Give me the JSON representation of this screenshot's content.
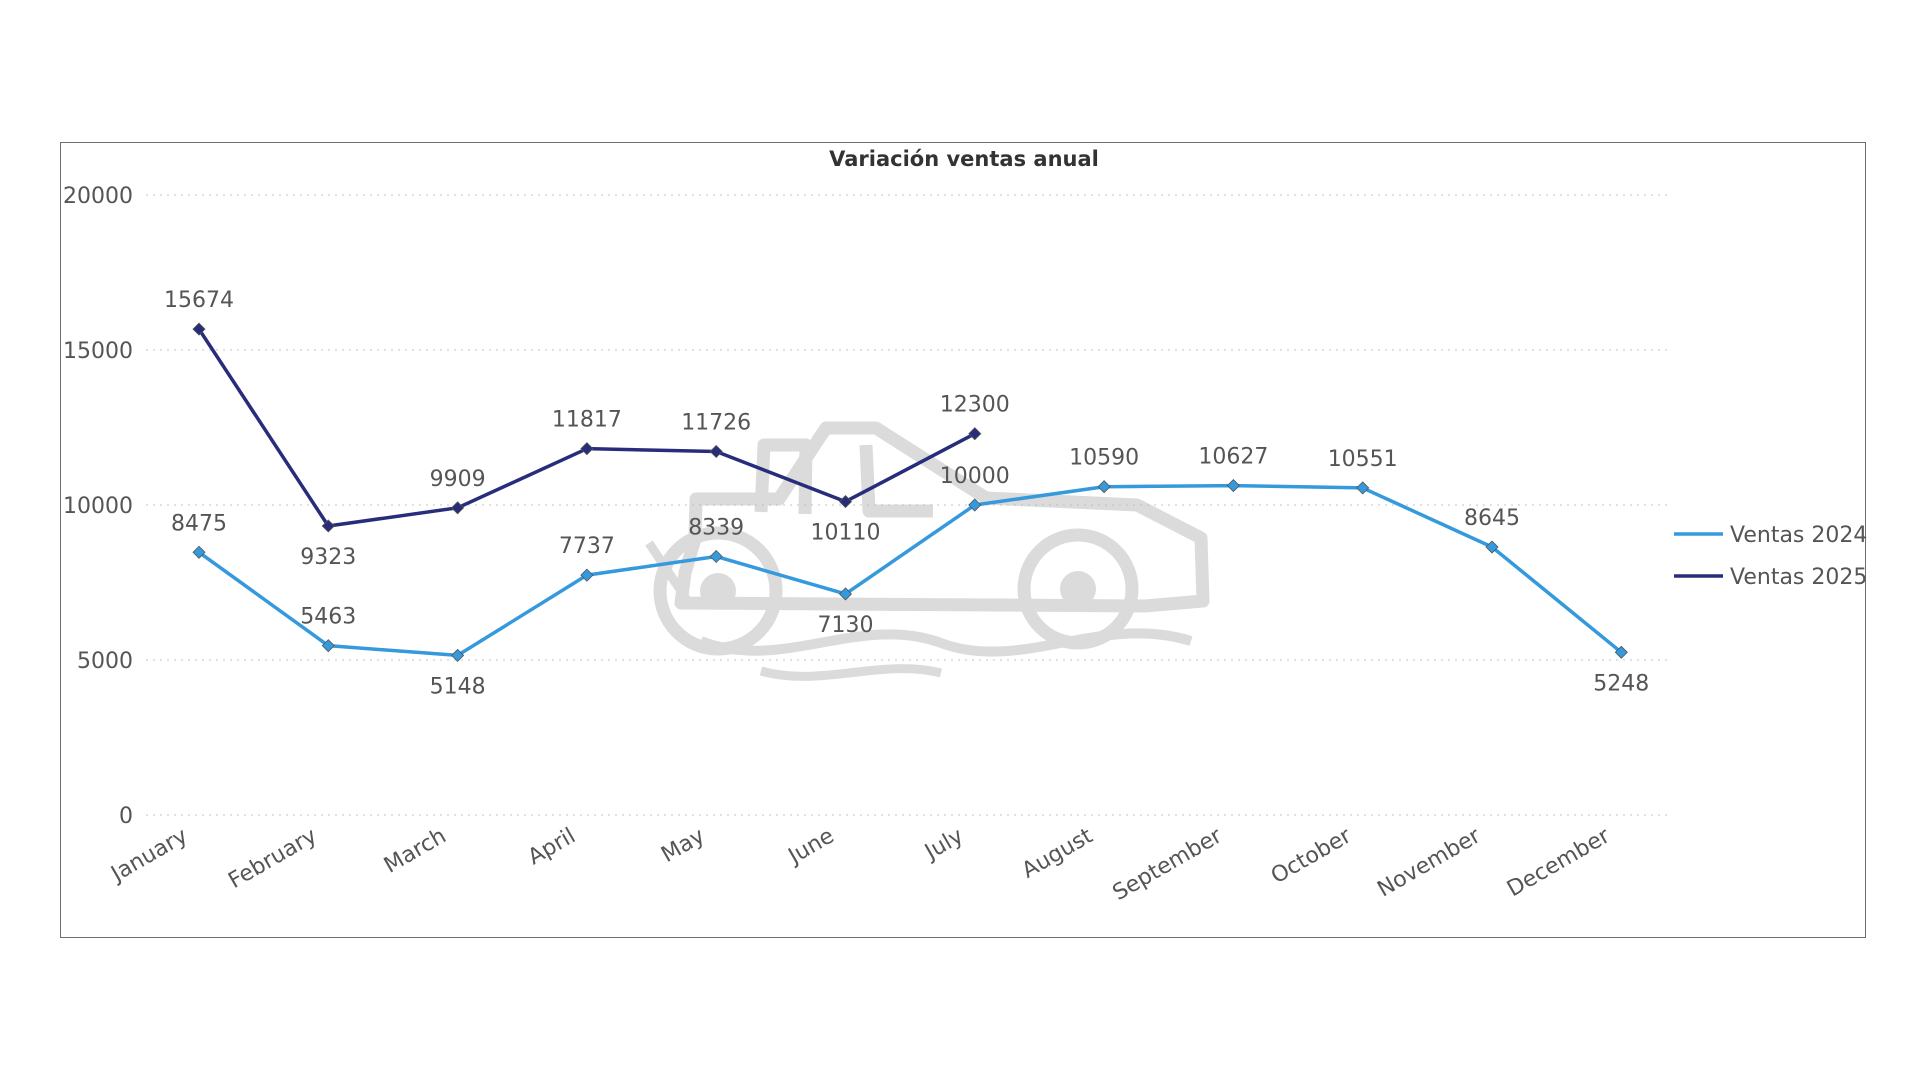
{
  "chart_data": {
    "type": "line",
    "title": "Variación ventas anual",
    "xlabel": "",
    "ylabel": "",
    "ylim": [
      0,
      20000
    ],
    "yticks": [
      "0",
      "5000",
      "10000",
      "15000",
      "20000"
    ],
    "grid": true,
    "legend_position": "right",
    "categories": [
      "January",
      "February",
      "March",
      "April",
      "May",
      "June",
      "July",
      "August",
      "September",
      "October",
      "November",
      "December"
    ],
    "series": [
      {
        "name": "Ventas 2024",
        "color": "#3599dd",
        "values": [
          8475,
          5463,
          5148,
          7737,
          8339,
          7130,
          10000,
          10590,
          10627,
          10551,
          8645,
          5248
        ],
        "labels": [
          "8475",
          "5463",
          "5148",
          "7737",
          "8339",
          "7130",
          "10000",
          "10590",
          "10627",
          "10551",
          "8645",
          "5248"
        ]
      },
      {
        "name": "Ventas 2025",
        "color": "#272d7a",
        "values": [
          15674,
          9323,
          9909,
          11817,
          11726,
          10110,
          12300,
          null,
          null,
          null,
          null,
          null
        ],
        "labels": [
          "15674",
          "9323",
          "9909",
          "11817",
          "11726",
          "10110",
          "12300",
          null,
          null,
          null,
          null,
          null
        ]
      }
    ]
  }
}
